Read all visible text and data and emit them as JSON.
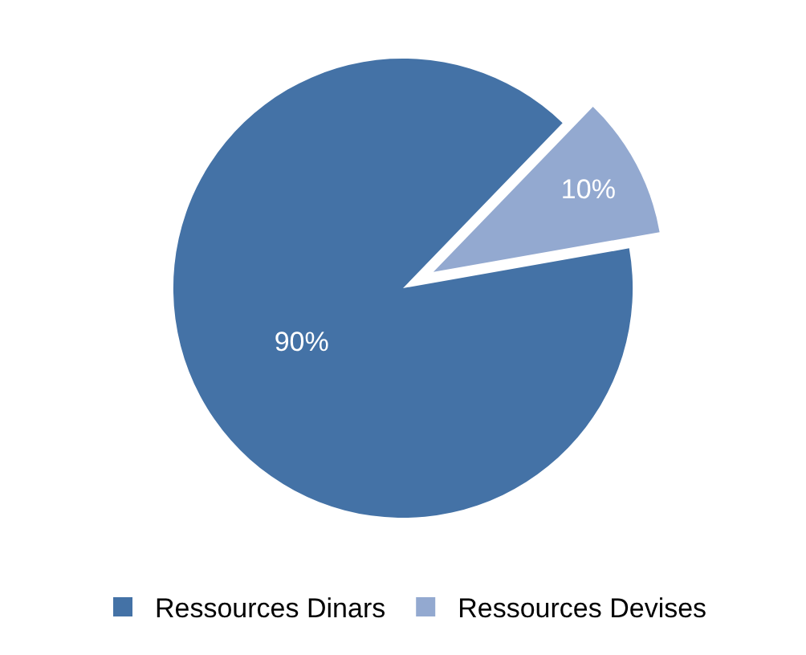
{
  "chart_data": {
    "type": "pie",
    "categories": [
      "Ressources Dinars",
      "Ressources Devises"
    ],
    "values": [
      90,
      10
    ],
    "value_labels": [
      "90%",
      "10%"
    ],
    "colors": [
      "#4472a6",
      "#93a9d0"
    ],
    "legend": "bottom"
  }
}
